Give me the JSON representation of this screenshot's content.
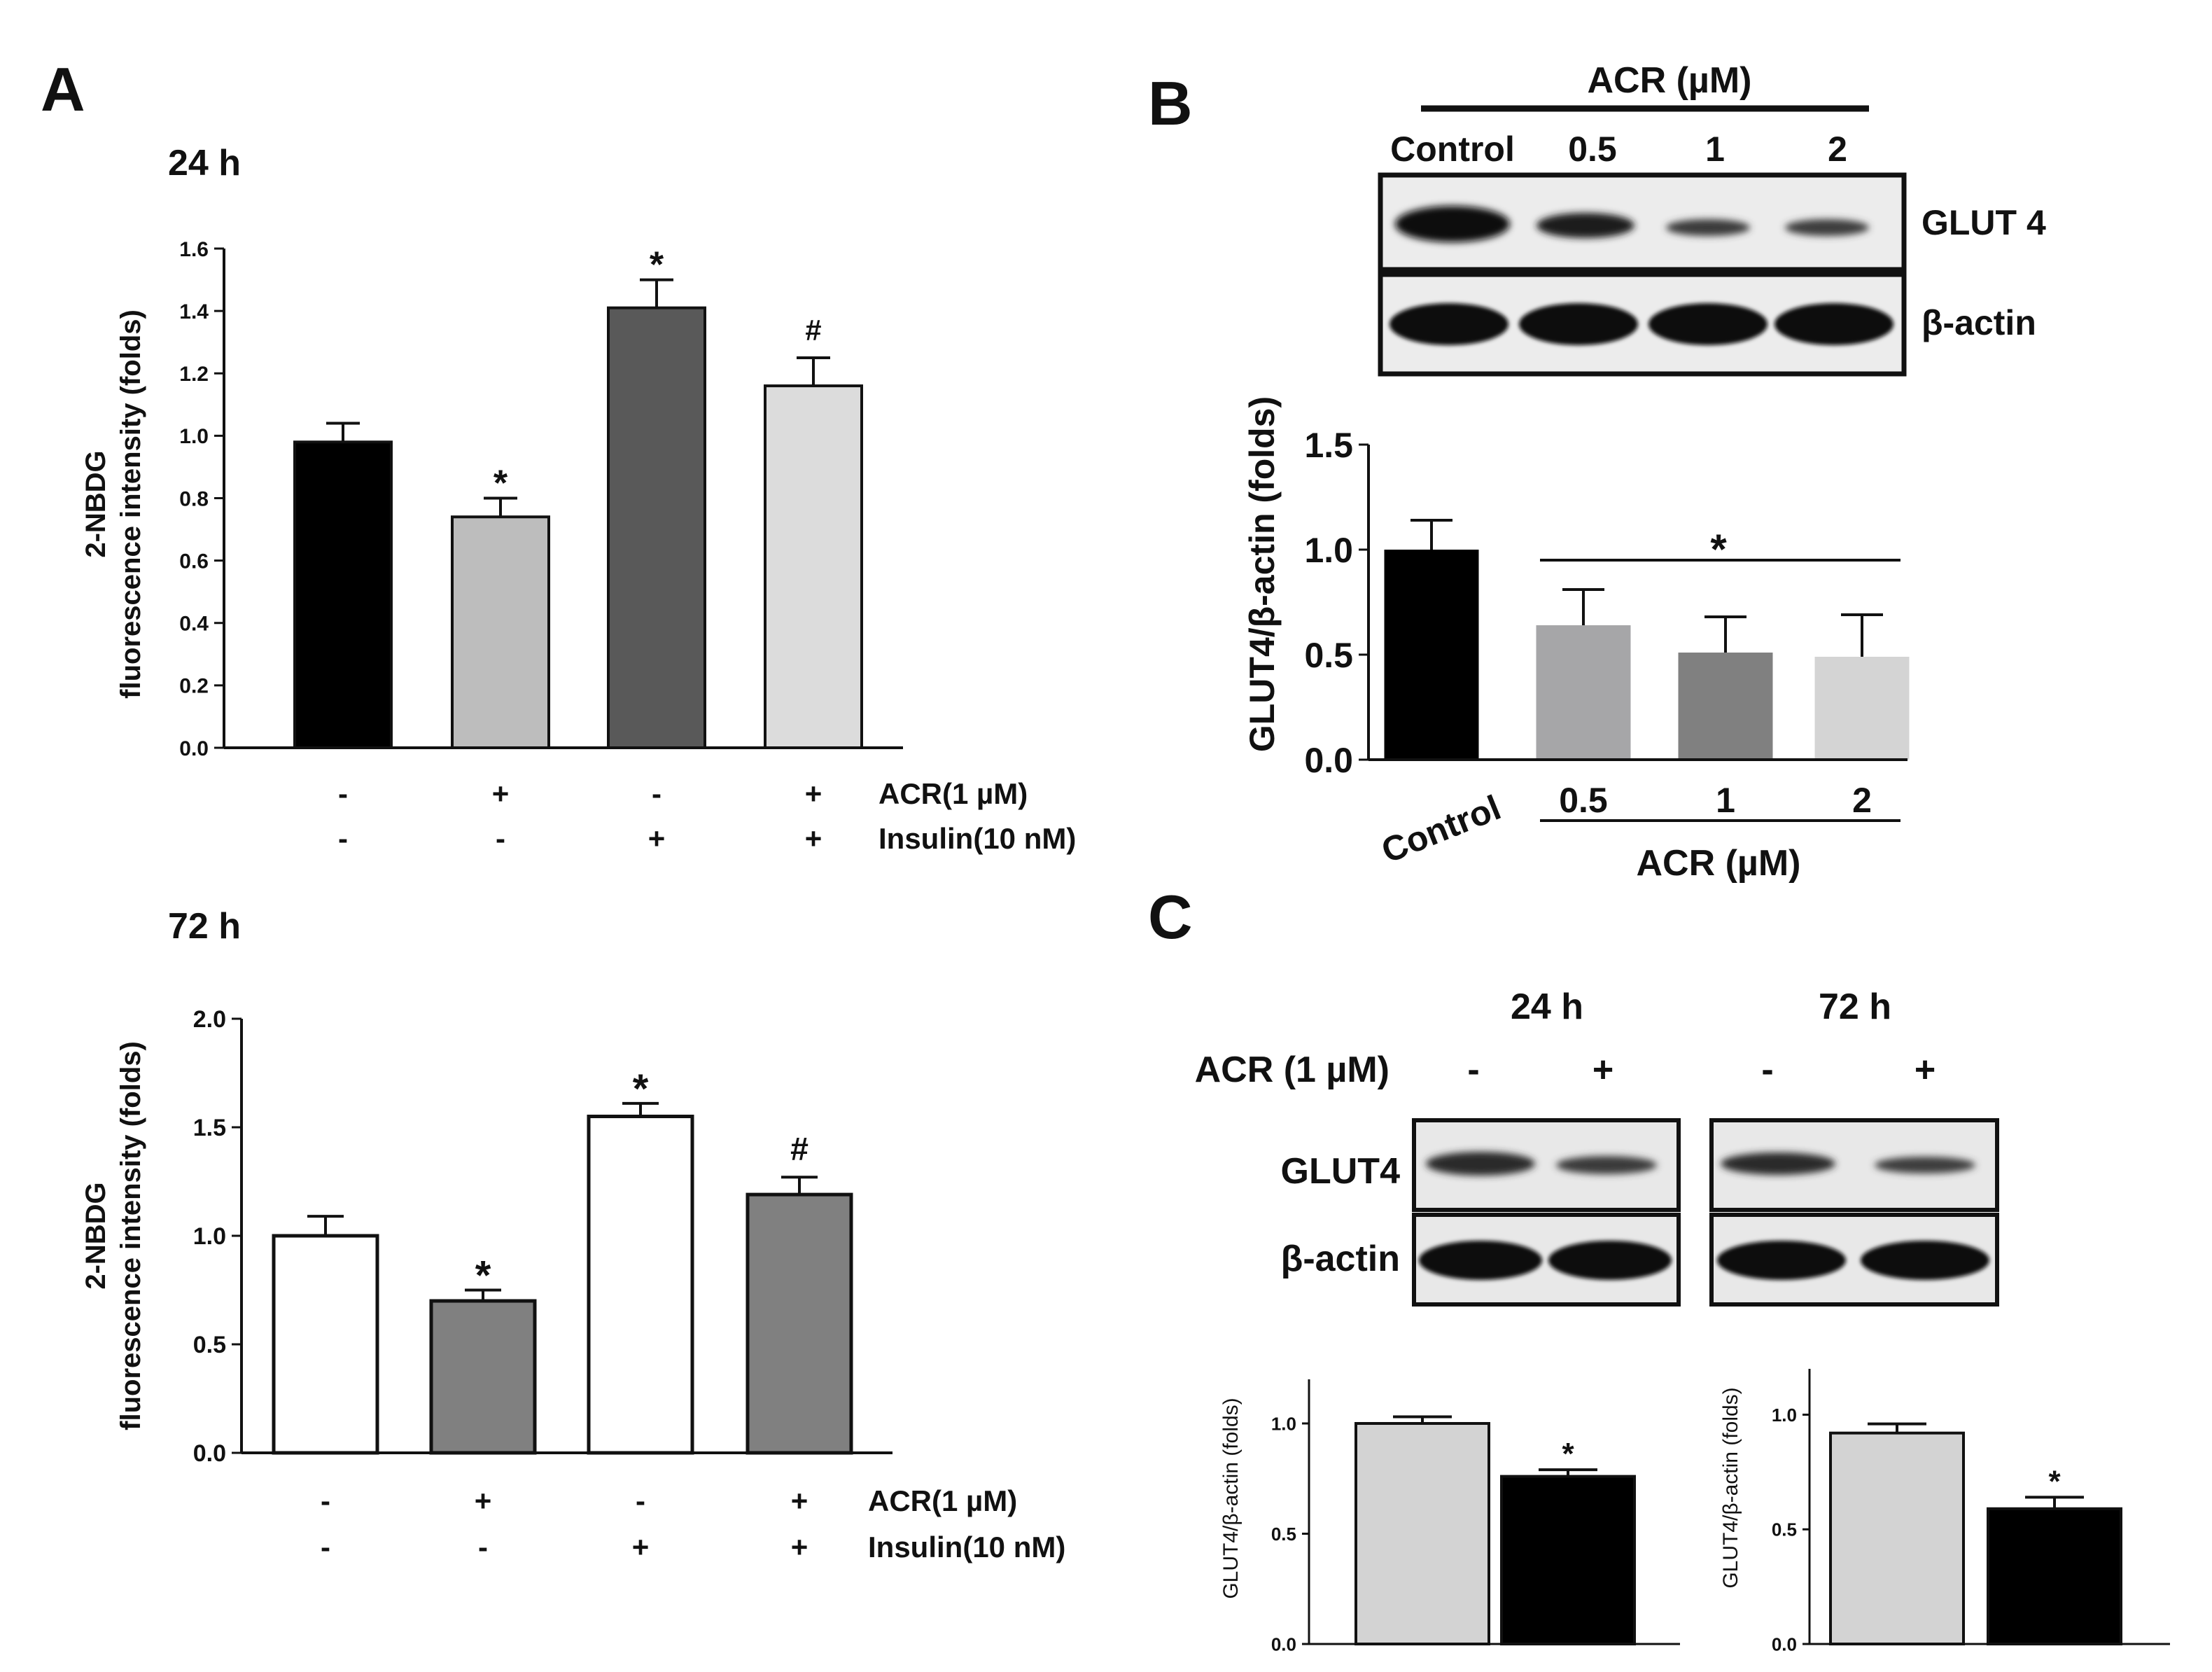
{
  "figure": {
    "panel_labels": [
      "A",
      "B",
      "C"
    ]
  },
  "chart_data": [
    {
      "id": "A-24h",
      "type": "bar",
      "title": "24 h",
      "ylabel_lines": [
        "2-NBDG",
        "fluorescence intensity (folds)"
      ],
      "ylim": [
        0,
        1.6
      ],
      "yticks": [
        "0.0",
        "0.2",
        "0.4",
        "0.6",
        "0.8",
        "1.0",
        "1.2",
        "1.4",
        "1.6"
      ],
      "values": [
        0.98,
        0.74,
        1.41,
        1.16
      ],
      "errors": [
        0.06,
        0.06,
        0.09,
        0.09
      ],
      "bar_colors": [
        "#000000",
        "#bdbdbd",
        "#595959",
        "#dcdcdc"
      ],
      "annotations": [
        "",
        "*",
        "*",
        "#"
      ],
      "conditions": [
        {
          "label": "ACR(1 µM)",
          "marks": [
            "-",
            "+",
            "-",
            "+"
          ]
        },
        {
          "label": "Insulin(10 nM)",
          "marks": [
            "-",
            "-",
            "+",
            "+"
          ]
        }
      ]
    },
    {
      "id": "A-72h",
      "type": "bar",
      "title": "72 h",
      "ylabel_lines": [
        "2-NBDG",
        "fluorescence intensity (folds)"
      ],
      "ylim": [
        0,
        2.0
      ],
      "yticks": [
        "0.0",
        "0.5",
        "1.0",
        "1.5",
        "2.0"
      ],
      "values": [
        1.0,
        0.7,
        1.55,
        1.19
      ],
      "errors": [
        0.09,
        0.05,
        0.06,
        0.08
      ],
      "bar_colors": [
        "#ffffff",
        "#808080",
        "#ffffff",
        "#808080"
      ],
      "annotations": [
        "",
        "*",
        "*",
        "#"
      ],
      "conditions": [
        {
          "label": "ACR(1 µM)",
          "marks": [
            "-",
            "+",
            "-",
            "+"
          ]
        },
        {
          "label": "Insulin(10 nM)",
          "marks": [
            "-",
            "-",
            "+",
            "+"
          ]
        }
      ]
    },
    {
      "id": "B",
      "type": "bar",
      "ylabel": "GLUT4/β-actin (folds)",
      "ylim": [
        0,
        1.5
      ],
      "yticks": [
        "0.0",
        "0.5",
        "1.0",
        "1.5"
      ],
      "categories": [
        "Control",
        "0.5",
        "1",
        "2"
      ],
      "values": [
        1.0,
        0.64,
        0.51,
        0.49
      ],
      "errors": [
        0.14,
        0.17,
        0.17,
        0.2
      ],
      "bar_colors": [
        "#000000",
        "#a6a6a8",
        "#808080",
        "#d4d4d4"
      ],
      "group_label": "ACR (µM)",
      "significance": "*"
    },
    {
      "id": "C-24h",
      "type": "bar",
      "ylabel": "GLUT4/β-actin (folds)",
      "ylim": [
        0,
        1.2
      ],
      "yticks": [
        "0.0",
        "0.5",
        "1.0"
      ],
      "values": [
        1.0,
        0.76
      ],
      "errors": [
        0.03,
        0.03
      ],
      "bar_colors": [
        "#d3d3d3",
        "#000000"
      ],
      "annotations": [
        "",
        "*"
      ]
    },
    {
      "id": "C-72h",
      "type": "bar",
      "ylabel": "GLUT4/β-actin (folds)",
      "ylim": [
        0,
        1.2
      ],
      "yticks": [
        "0.0",
        "0.5",
        "1.0"
      ],
      "values": [
        0.92,
        0.59
      ],
      "errors": [
        0.04,
        0.05
      ],
      "bar_colors": [
        "#d3d3d3",
        "#000000"
      ],
      "annotations": [
        "",
        "*"
      ]
    }
  ],
  "blot_B": {
    "header": "ACR (µM)",
    "lanes": [
      "Control",
      "0.5",
      "1",
      "2"
    ],
    "rows": [
      "GLUT 4",
      "β-actin"
    ]
  },
  "blot_C": {
    "timepoints": [
      "24 h",
      "72 h"
    ],
    "treatment_label": "ACR (1 µM)",
    "marks": [
      "-",
      "+"
    ],
    "rows": [
      "GLUT4",
      "β-actin"
    ]
  }
}
